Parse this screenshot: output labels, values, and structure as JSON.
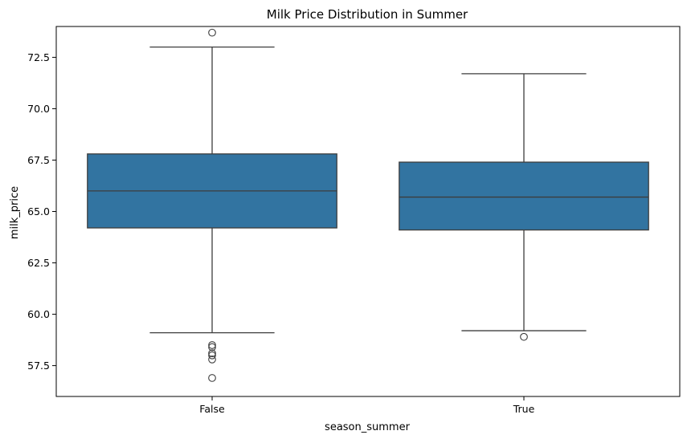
{
  "chart_data": {
    "type": "box",
    "title": "Milk Price Distribution in Summer",
    "xlabel": "season_summer",
    "ylabel": "milk_price",
    "categories": [
      "False",
      "True"
    ],
    "ylim": [
      56.0,
      74.0
    ],
    "yticks": [
      57.5,
      60.0,
      62.5,
      65.0,
      67.5,
      70.0,
      72.5
    ],
    "ytick_labels": [
      "57.5",
      "60.0",
      "62.5",
      "65.0",
      "67.5",
      "70.0",
      "72.5"
    ],
    "box_color": "#3274a1",
    "line_color": "#3d3d3d",
    "grid": false,
    "boxes": [
      {
        "category": "False",
        "whisker_low": 59.1,
        "q1": 64.2,
        "median": 66.0,
        "q3": 67.8,
        "whisker_high": 73.0,
        "outliers": [
          73.7,
          58.5,
          58.4,
          58.1,
          58.0,
          57.8,
          56.9
        ]
      },
      {
        "category": "True",
        "whisker_low": 59.2,
        "q1": 64.1,
        "median": 65.7,
        "q3": 67.4,
        "whisker_high": 71.7,
        "outliers": [
          58.9
        ]
      }
    ]
  }
}
